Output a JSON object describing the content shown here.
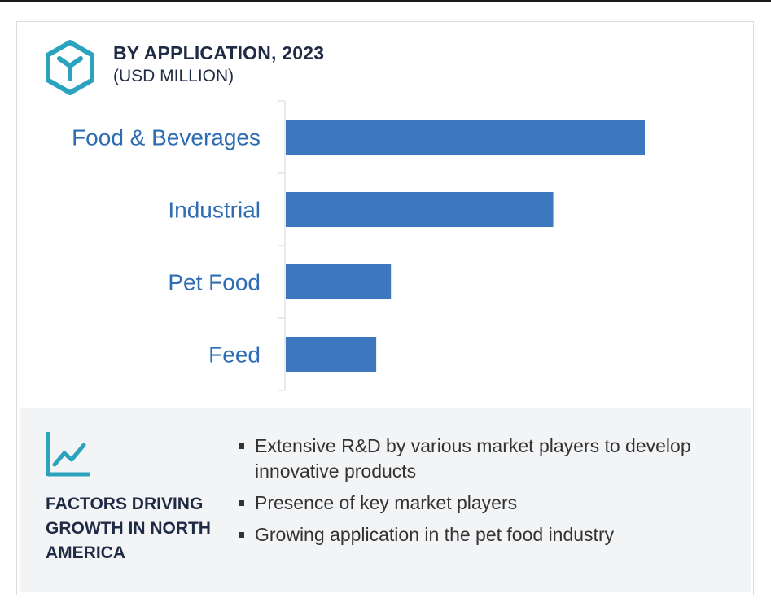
{
  "header": {
    "title": "BY APPLICATION, 2023",
    "subtitle": "(USD MILLION)",
    "icon": "hexagon-y-logo-icon"
  },
  "colors": {
    "bar": "#3d77bd",
    "category_label": "#2e6db4",
    "heading": "#1f2a44",
    "icon_teal": "#2ba3bf",
    "panel_bg": "#f3f4f6"
  },
  "chart_data": {
    "type": "bar",
    "orientation": "horizontal",
    "title": "BY APPLICATION, 2023",
    "subtitle": "(USD MILLION)",
    "categories": [
      "Food & Beverages",
      "Industrial",
      "Pet Food",
      "Feed"
    ],
    "values": [
      100,
      74.5,
      29.3,
      25.2
    ],
    "xlim": [
      0,
      100
    ],
    "grid": false,
    "value_axis_labels": false
  },
  "factors": {
    "icon": "line-chart-growth-icon",
    "title": "FACTORS DRIVING GROWTH IN NORTH AMERICA",
    "items": [
      "Extensive R&D by various market players to develop innovative products",
      "Presence of key market players",
      "Growing application in the pet food industry"
    ]
  }
}
